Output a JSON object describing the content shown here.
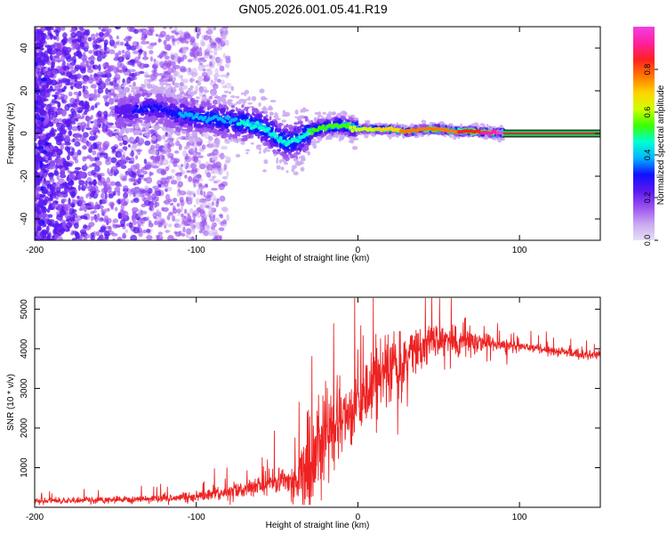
{
  "title": "GN05.2026.001.05.41.R19",
  "colors": {
    "snr_line": "#ee2222",
    "spectrum_track": "#ff2a2a",
    "axis": "#000000",
    "colormap": [
      "#e6e0f8",
      "#c9a8f0",
      "#9b52f0",
      "#5a18f0",
      "#1010ff",
      "#00b4ff",
      "#00ffd2",
      "#3cff00",
      "#d2ff00",
      "#ffd200",
      "#ff7800",
      "#ff2020",
      "#ff20a0",
      "#f040e0"
    ]
  },
  "chart_data": [
    {
      "type": "heatmap",
      "name": "spectrogram",
      "xlabel": "Height of straight line (km)",
      "ylabel": "Frequency (Hz)",
      "xlim": [
        -200,
        150
      ],
      "ylim": [
        -50,
        50
      ],
      "xticks": [
        -200,
        -100,
        0,
        100
      ],
      "yticks": [
        -40,
        -20,
        0,
        20,
        40
      ],
      "xtick_labels": [
        "-200",
        "-100",
        "0",
        "100"
      ],
      "ytick_labels": [
        "-40",
        "-20",
        "0",
        "20",
        "40"
      ],
      "colorbar": {
        "label": "Normalized spectral amplitude",
        "range": [
          0,
          1
        ],
        "ticks": [
          0,
          0.2,
          0.4,
          0.6,
          0.8
        ],
        "tick_labels": [
          "0.0",
          "0.2",
          "0.4",
          "0.6",
          "0.8"
        ]
      },
      "ridge": {
        "x": [
          -145,
          -130,
          -120,
          -110,
          -100,
          -90,
          -80,
          -70,
          -60,
          -55,
          -50,
          -45,
          -40,
          -35,
          -30,
          -20,
          -10,
          0,
          10,
          20,
          30,
          40,
          50,
          60,
          70,
          80,
          90,
          150
        ],
        "frequency": [
          10,
          12,
          11,
          9,
          8,
          7,
          6,
          5,
          3,
          1,
          -2,
          -4,
          -4,
          -2,
          1,
          3,
          4,
          2,
          2,
          2,
          1,
          2,
          2,
          1,
          1,
          0.5,
          0,
          0
        ],
        "amplitude": [
          0.25,
          0.3,
          0.3,
          0.35,
          0.35,
          0.4,
          0.4,
          0.45,
          0.45,
          0.45,
          0.45,
          0.45,
          0.45,
          0.45,
          0.5,
          0.5,
          0.55,
          0.6,
          0.65,
          0.7,
          0.75,
          0.75,
          0.8,
          0.8,
          0.85,
          0.9,
          1.0,
          1.0
        ]
      }
    },
    {
      "type": "line",
      "name": "snr",
      "xlabel": "Height of straight line (km)",
      "ylabel": "SNR (10 * v/v)",
      "xlim": [
        -200,
        150
      ],
      "ylim": [
        0,
        5300
      ],
      "xticks": [
        -200,
        -100,
        0,
        100
      ],
      "yticks": [
        1000,
        2000,
        3000,
        4000,
        5000
      ],
      "xtick_labels": [
        "-200",
        "-100",
        "0",
        "100"
      ],
      "ytick_labels": [
        "1000",
        "2000",
        "3000",
        "4000",
        "5000"
      ],
      "envelope": {
        "x": [
          -200,
          -180,
          -160,
          -140,
          -120,
          -100,
          -90,
          -80,
          -70,
          -60,
          -50,
          -45,
          -40,
          -35,
          -30,
          -28,
          -25,
          -20,
          -15,
          -10,
          -5,
          0,
          5,
          10,
          15,
          20,
          25,
          30,
          40,
          50,
          60,
          70,
          80,
          90,
          100,
          110,
          120,
          130,
          140,
          150
        ],
        "snr": [
          150,
          170,
          190,
          200,
          240,
          280,
          320,
          380,
          460,
          560,
          650,
          700,
          750,
          850,
          1000,
          1200,
          1700,
          1900,
          2100,
          2200,
          2400,
          2700,
          2900,
          3200,
          3300,
          3500,
          3600,
          3800,
          4050,
          4200,
          4200,
          4180,
          4150,
          4100,
          4050,
          4000,
          3950,
          3900,
          3850,
          3850
        ]
      },
      "noise_amplitude": {
        "x": [
          -200,
          -120,
          -80,
          -60,
          -45,
          -35,
          -30,
          -20,
          -10,
          0,
          20,
          40,
          60,
          80,
          100,
          150
        ],
        "snr": [
          60,
          90,
          150,
          250,
          350,
          700,
          1100,
          1000,
          900,
          850,
          750,
          550,
          350,
          200,
          120,
          100
        ]
      }
    }
  ]
}
